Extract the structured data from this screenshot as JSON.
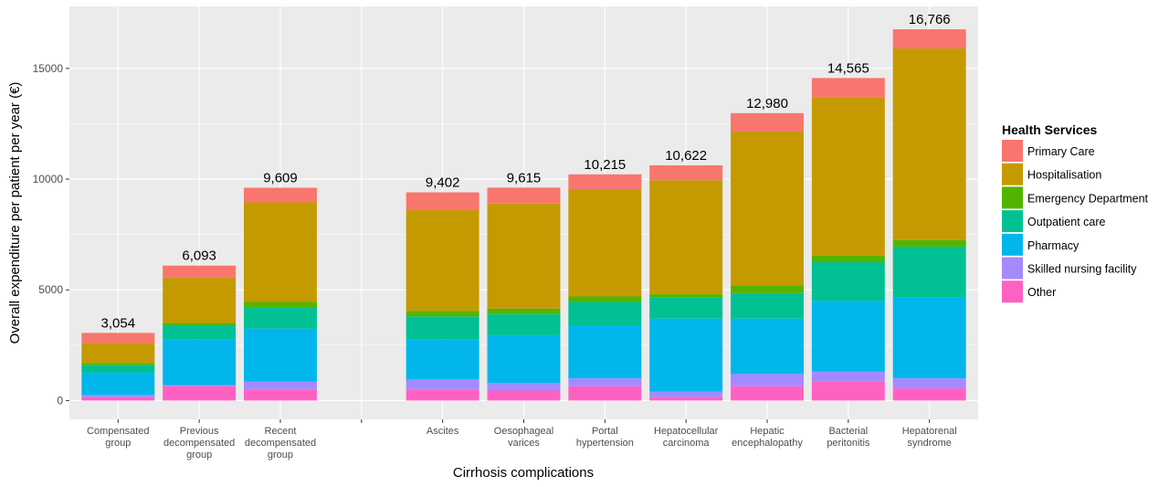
{
  "chart_data": {
    "type": "bar",
    "stacked": true,
    "xlabel": "Cirrhosis complications",
    "ylabel": "Overall expenditure per patient per year (€)",
    "ylim": [
      -850,
      17800
    ],
    "yticks": [
      0,
      5000,
      10000,
      15000
    ],
    "grid": true,
    "legend_position": "right",
    "legend_title": "Health Services",
    "categories": [
      [
        "Compensated",
        "group"
      ],
      [
        "Previous",
        "decompensated",
        "group"
      ],
      [
        "Recent",
        "decompensated",
        "group"
      ],
      [
        ""
      ],
      [
        "Ascites"
      ],
      [
        "Oesophageal",
        "varices"
      ],
      [
        "Portal",
        "hypertension"
      ],
      [
        "Hepatocellular",
        "carcinoma"
      ],
      [
        "Hepatic",
        "encephalopathy"
      ],
      [
        "Bacterial",
        "peritonitis"
      ],
      [
        "Hepatorenal",
        "syndrome"
      ]
    ],
    "totals": [
      "3,054",
      "6,093",
      "9,609",
      "",
      "9,402",
      "9,615",
      "10,215",
      "10,622",
      "12,980",
      "14,565",
      "16,766"
    ],
    "series": [
      {
        "name": "Other",
        "color": "#FF61C3",
        "values": [
          150,
          650,
          500,
          0,
          500,
          450,
          650,
          150,
          650,
          850,
          550
        ]
      },
      {
        "name": "Skilled nursing facility",
        "color": "#A58AFF",
        "values": [
          100,
          50,
          350,
          0,
          450,
          350,
          350,
          250,
          550,
          450,
          450
        ]
      },
      {
        "name": "Pharmacy",
        "color": "#00B6EB",
        "values": [
          1000,
          2050,
          2400,
          0,
          1800,
          2150,
          2400,
          3300,
          2500,
          3200,
          3650
        ]
      },
      {
        "name": "Outpatient care",
        "color": "#00C094",
        "values": [
          350,
          650,
          950,
          0,
          1050,
          950,
          1050,
          950,
          1150,
          1750,
          2300
        ]
      },
      {
        "name": "Emergency Department",
        "color": "#53B400",
        "values": [
          100,
          100,
          250,
          0,
          250,
          250,
          250,
          150,
          350,
          300,
          300
        ]
      },
      {
        "name": "Hospitalisation",
        "color": "#C49A00",
        "values": [
          900,
          2050,
          4500,
          0,
          4550,
          4750,
          4850,
          5150,
          6950,
          7150,
          8650
        ]
      },
      {
        "name": "Primary Care",
        "color": "#F8766D",
        "values": [
          454,
          543,
          659,
          0,
          802,
          715,
          665,
          672,
          830,
          865,
          866
        ]
      }
    ]
  }
}
